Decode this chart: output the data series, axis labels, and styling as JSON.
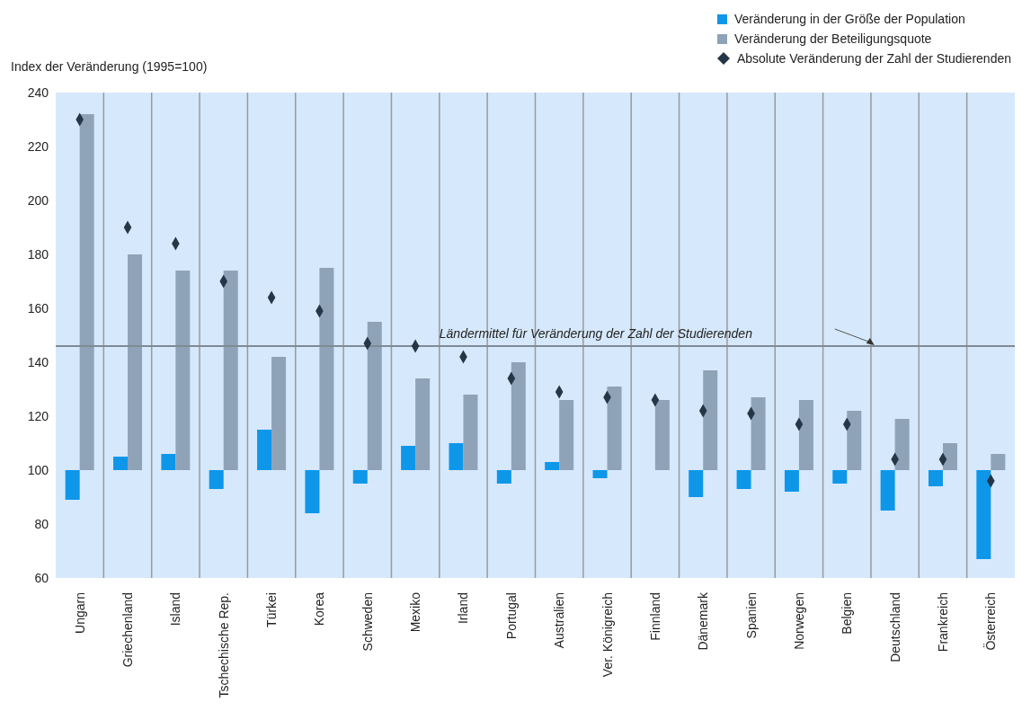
{
  "chart_data": {
    "type": "bar",
    "ylabel": "Index der Veränderung (1995=100)",
    "categories": [
      "Ungarn",
      "Griechenland",
      "Island",
      "Tschechische Rep.",
      "Türkei",
      "Korea",
      "Schweden",
      "Mexiko",
      "Irland",
      "Portugal",
      "Australien",
      "Ver. Königreich",
      "Finnland",
      "Dänemark",
      "Spanien",
      "Norwegen",
      "Belgien",
      "Deutschland",
      "Frankreich",
      "Österreich"
    ],
    "series": [
      {
        "name": "Veränderung in der Größe der Population",
        "color": "#0e97e9",
        "base": [
          100,
          100,
          100,
          100,
          100,
          100,
          100,
          100,
          100,
          100,
          100,
          100,
          null,
          100,
          100,
          100,
          100,
          100,
          100,
          100
        ],
        "values": [
          -11,
          5,
          6,
          -7,
          15,
          -16,
          -5,
          9,
          10,
          -5,
          3,
          -3,
          null,
          -10,
          -7,
          -8,
          -5,
          -15,
          -6,
          -33
        ]
      },
      {
        "name": "Veränderung der Beteiligungsquote",
        "color": "#8fa3b8",
        "base": [
          100,
          100,
          100,
          100,
          100,
          100,
          100,
          100,
          100,
          100,
          100,
          100,
          100,
          100,
          100,
          100,
          100,
          100,
          100,
          100
        ],
        "values": [
          132,
          80,
          74,
          74,
          42,
          75,
          55,
          34,
          28,
          40,
          26,
          31,
          26,
          37,
          27,
          26,
          22,
          19,
          10,
          6
        ]
      },
      {
        "name": "Absolute Veränderung der Zahl der Studierenden",
        "type": "scatter",
        "color": "#253746",
        "marker": "diamond",
        "values": [
          230,
          190,
          184,
          170,
          164,
          159,
          147,
          146,
          142,
          134,
          129,
          127,
          126,
          122,
          121,
          117,
          117,
          104,
          104,
          96
        ]
      }
    ],
    "ylim": [
      60,
      240
    ],
    "yticks": [
      60,
      80,
      100,
      120,
      140,
      160,
      180,
      200,
      220,
      240
    ],
    "grid": true,
    "legend": "top right",
    "ref_lines": [
      {
        "axis": "y",
        "value": 146,
        "label": "Ländermittel für Veränderung der Zahl der Studierenden",
        "color": "#7f8a94"
      }
    ]
  }
}
